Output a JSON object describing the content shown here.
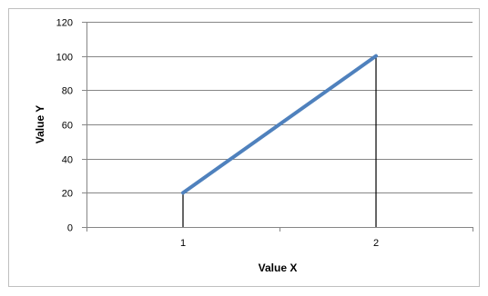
{
  "chart_data": {
    "type": "line",
    "title": "",
    "xlabel": "Value X",
    "ylabel": "Value Y",
    "categories": [
      "1",
      "2"
    ],
    "series": [
      {
        "values": [
          20,
          100
        ],
        "color": "#4F81BD"
      }
    ],
    "drop_lines": true,
    "ylim": [
      0,
      120
    ],
    "yticks": [
      0,
      20,
      40,
      60,
      80,
      100,
      120
    ],
    "grid": "horizontal",
    "legend": "none",
    "colors": {
      "series": "#4F81BD",
      "gridline": "#868686",
      "drop_line": "#000000",
      "border": "#bfbfbf"
    }
  }
}
